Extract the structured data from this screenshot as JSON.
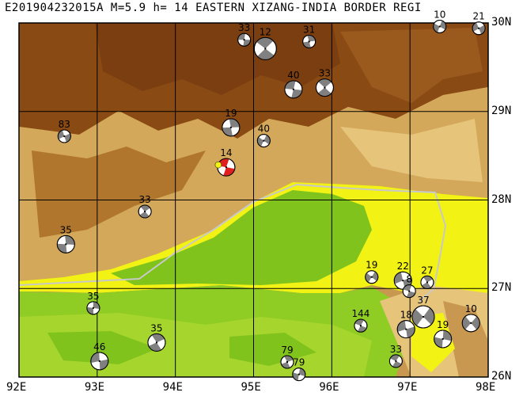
{
  "title": "E201904232015A M=5.9 h= 14 EASTERN XIZANG-INDIA BORDER REGI",
  "map": {
    "lon_range": [
      92,
      98
    ],
    "lat_range": [
      26,
      30
    ],
    "lon_ticks": [
      "92E",
      "93E",
      "94E",
      "95E",
      "96E",
      "97E",
      "98E"
    ],
    "lat_ticks": [
      "30N",
      "29N",
      "28N",
      "27N",
      "26N"
    ],
    "grid": true,
    "colors": {
      "lowland_green": "#7fc31c",
      "light_green": "#a6d62e",
      "yellow": "#f2f214",
      "tan": "#d8b060",
      "brown": "#b07028",
      "dark_brown": "#8a4a14",
      "border_line": "#c8c8c8",
      "highlight_mechanism": "#e02020",
      "epicenter_marker": "#f2f214"
    }
  },
  "mechanisms": [
    {
      "label": "33",
      "lon": 94.88,
      "lat": 29.81,
      "size": "small"
    },
    {
      "label": "12",
      "lon": 95.15,
      "lat": 29.71,
      "size": "large"
    },
    {
      "label": "31",
      "lon": 95.71,
      "lat": 29.79,
      "size": "small"
    },
    {
      "label": "10",
      "lon": 97.38,
      "lat": 29.96,
      "size": "small"
    },
    {
      "label": "21",
      "lon": 97.88,
      "lat": 29.94,
      "size": "small"
    },
    {
      "label": "40",
      "lon": 95.51,
      "lat": 29.25,
      "size": "medium"
    },
    {
      "label": "33",
      "lon": 95.91,
      "lat": 29.27,
      "size": "medium"
    },
    {
      "label": "19",
      "lon": 94.71,
      "lat": 28.82,
      "size": "medium"
    },
    {
      "label": "40",
      "lon": 95.13,
      "lat": 28.67,
      "size": "small"
    },
    {
      "label": "83",
      "lon": 92.58,
      "lat": 28.72,
      "size": "small"
    },
    {
      "label": "14",
      "lon": 94.65,
      "lat": 28.37,
      "size": "medium",
      "highlight": true
    },
    {
      "label": "33",
      "lon": 93.61,
      "lat": 27.87,
      "size": "small"
    },
    {
      "label": "35",
      "lon": 92.6,
      "lat": 27.5,
      "size": "medium"
    },
    {
      "label": "19",
      "lon": 96.51,
      "lat": 27.13,
      "size": "small"
    },
    {
      "label": "22",
      "lon": 96.91,
      "lat": 27.09,
      "size": "medium"
    },
    {
      "label": "8",
      "lon": 96.99,
      "lat": 26.97,
      "size": "small"
    },
    {
      "label": "27",
      "lon": 97.22,
      "lat": 27.07,
      "size": "small"
    },
    {
      "label": "35",
      "lon": 92.95,
      "lat": 26.78,
      "size": "small"
    },
    {
      "label": "37",
      "lon": 97.17,
      "lat": 26.68,
      "size": "large"
    },
    {
      "label": "18",
      "lon": 96.95,
      "lat": 26.54,
      "size": "medium"
    },
    {
      "label": "144",
      "lon": 96.37,
      "lat": 26.58,
      "size": "small"
    },
    {
      "label": "35",
      "lon": 93.76,
      "lat": 26.39,
      "size": "medium"
    },
    {
      "label": "19",
      "lon": 97.42,
      "lat": 26.43,
      "size": "medium"
    },
    {
      "label": "10",
      "lon": 97.78,
      "lat": 26.61,
      "size": "medium"
    },
    {
      "label": "46",
      "lon": 93.03,
      "lat": 26.18,
      "size": "medium"
    },
    {
      "label": "33",
      "lon": 96.82,
      "lat": 26.18,
      "size": "small"
    },
    {
      "label": "79",
      "lon": 95.43,
      "lat": 26.17,
      "size": "small"
    },
    {
      "label": "79",
      "lon": 95.58,
      "lat": 26.03,
      "size": "small"
    }
  ]
}
